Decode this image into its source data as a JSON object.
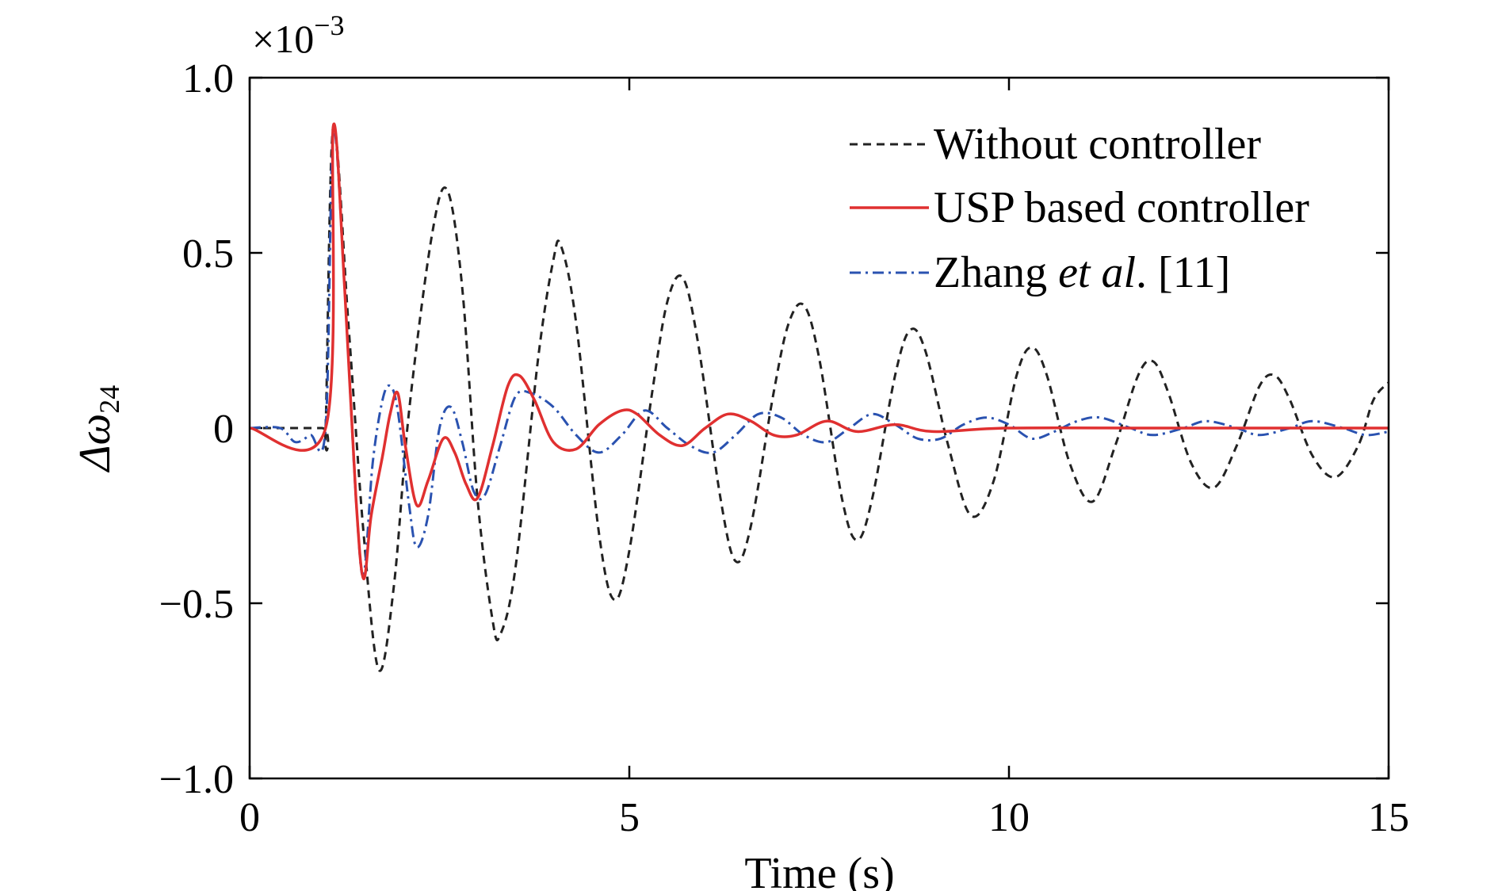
{
  "chart_data": {
    "type": "line",
    "title": "",
    "xlabel": "Time (s)",
    "ylabel_base": "Δω",
    "ylabel_sub": "24",
    "y_scale_label": "×10",
    "y_scale_exponent": "−3",
    "xlim": [
      0,
      15
    ],
    "ylim": [
      -1.0,
      1.0
    ],
    "xticks": [
      0,
      5,
      10,
      15
    ],
    "xtick_labels": [
      "0",
      "5",
      "10",
      "15"
    ],
    "yticks": [
      -1.0,
      -0.5,
      0,
      0.5,
      1.0
    ],
    "ytick_labels": [
      "−1.0",
      "−0.5",
      "0",
      "0.5",
      "1.0"
    ],
    "grid": false,
    "legend_position": "top-right",
    "legend": [
      {
        "label": "Without controller",
        "color": "#222222",
        "style": "dashed"
      },
      {
        "label": "USP based controller",
        "color": "#e03030",
        "style": "solid"
      },
      {
        "label_parts": [
          "Zhang ",
          "et al",
          ". [11]"
        ],
        "color": "#2a52b0",
        "style": "dashdot"
      }
    ],
    "series": [
      {
        "name": "Without controller",
        "color": "#222222",
        "style": "dashed",
        "points": [
          [
            0,
            0
          ],
          [
            0.95,
            0
          ],
          [
            1.0,
            0
          ],
          [
            1.1,
            0.86
          ],
          [
            1.3,
            0.3
          ],
          [
            1.5,
            -0.3
          ],
          [
            1.7,
            -0.69
          ],
          [
            1.9,
            -0.45
          ],
          [
            2.1,
            0.05
          ],
          [
            2.4,
            0.55
          ],
          [
            2.6,
            0.68
          ],
          [
            2.8,
            0.4
          ],
          [
            3.0,
            -0.2
          ],
          [
            3.2,
            -0.55
          ],
          [
            3.3,
            -0.59
          ],
          [
            3.5,
            -0.4
          ],
          [
            3.8,
            0.2
          ],
          [
            4.0,
            0.48
          ],
          [
            4.1,
            0.52
          ],
          [
            4.3,
            0.3
          ],
          [
            4.6,
            -0.3
          ],
          [
            4.8,
            -0.49
          ],
          [
            5.0,
            -0.35
          ],
          [
            5.3,
            0.1
          ],
          [
            5.5,
            0.36
          ],
          [
            5.7,
            0.43
          ],
          [
            5.9,
            0.25
          ],
          [
            6.2,
            -0.2
          ],
          [
            6.4,
            -0.38
          ],
          [
            6.6,
            -0.28
          ],
          [
            6.9,
            0.1
          ],
          [
            7.1,
            0.3
          ],
          [
            7.3,
            0.35
          ],
          [
            7.5,
            0.2
          ],
          [
            7.8,
            -0.2
          ],
          [
            8.0,
            -0.32
          ],
          [
            8.2,
            -0.2
          ],
          [
            8.5,
            0.15
          ],
          [
            8.7,
            0.28
          ],
          [
            8.9,
            0.22
          ],
          [
            9.2,
            -0.05
          ],
          [
            9.5,
            -0.25
          ],
          [
            9.8,
            -0.15
          ],
          [
            10.1,
            0.15
          ],
          [
            10.3,
            0.23
          ],
          [
            10.5,
            0.15
          ],
          [
            10.8,
            -0.1
          ],
          [
            11.1,
            -0.21
          ],
          [
            11.4,
            -0.05
          ],
          [
            11.7,
            0.15
          ],
          [
            11.9,
            0.19
          ],
          [
            12.1,
            0.1
          ],
          [
            12.4,
            -0.1
          ],
          [
            12.7,
            -0.17
          ],
          [
            13.0,
            -0.05
          ],
          [
            13.3,
            0.12
          ],
          [
            13.5,
            0.15
          ],
          [
            13.7,
            0.08
          ],
          [
            14.0,
            -0.08
          ],
          [
            14.3,
            -0.14
          ],
          [
            14.6,
            -0.05
          ],
          [
            14.8,
            0.08
          ],
          [
            15.0,
            0.13
          ]
        ]
      },
      {
        "name": "USP based controller",
        "color": "#e03030",
        "style": "solid",
        "points": [
          [
            0,
            0
          ],
          [
            1.0,
            0
          ],
          [
            1.1,
            0.86
          ],
          [
            1.25,
            0.4
          ],
          [
            1.4,
            -0.2
          ],
          [
            1.5,
            -0.43
          ],
          [
            1.6,
            -0.25
          ],
          [
            1.75,
            -0.08
          ],
          [
            1.85,
            0.04
          ],
          [
            1.95,
            0.1
          ],
          [
            2.05,
            -0.05
          ],
          [
            2.2,
            -0.22
          ],
          [
            2.35,
            -0.15
          ],
          [
            2.55,
            -0.03
          ],
          [
            2.7,
            -0.07
          ],
          [
            2.85,
            -0.16
          ],
          [
            3.0,
            -0.2
          ],
          [
            3.2,
            -0.05
          ],
          [
            3.4,
            0.12
          ],
          [
            3.55,
            0.15
          ],
          [
            3.75,
            0.08
          ],
          [
            4.0,
            -0.04
          ],
          [
            4.3,
            -0.06
          ],
          [
            4.6,
            0.01
          ],
          [
            4.9,
            0.05
          ],
          [
            5.1,
            0.04
          ],
          [
            5.4,
            -0.02
          ],
          [
            5.7,
            -0.05
          ],
          [
            6.0,
            0.0
          ],
          [
            6.3,
            0.04
          ],
          [
            6.6,
            0.02
          ],
          [
            6.9,
            -0.02
          ],
          [
            7.2,
            -0.02
          ],
          [
            7.6,
            0.02
          ],
          [
            8.0,
            -0.01
          ],
          [
            8.5,
            0.01
          ],
          [
            9.0,
            -0.01
          ],
          [
            10.0,
            0.0
          ],
          [
            12.0,
            0.0
          ],
          [
            15.0,
            0.0
          ]
        ]
      },
      {
        "name": "Zhang et al. [11]",
        "color": "#2a52b0",
        "style": "dashdot",
        "points": [
          [
            0,
            0
          ],
          [
            0.4,
            0
          ],
          [
            0.6,
            -0.04
          ],
          [
            0.8,
            -0.02
          ],
          [
            1.0,
            0
          ],
          [
            1.1,
            0.84
          ],
          [
            1.25,
            0.4
          ],
          [
            1.4,
            -0.2
          ],
          [
            1.5,
            -0.42
          ],
          [
            1.62,
            -0.1
          ],
          [
            1.75,
            0.08
          ],
          [
            1.85,
            0.12
          ],
          [
            1.95,
            0.05
          ],
          [
            2.1,
            -0.22
          ],
          [
            2.2,
            -0.34
          ],
          [
            2.35,
            -0.25
          ],
          [
            2.5,
            0.0
          ],
          [
            2.65,
            0.06
          ],
          [
            2.8,
            -0.04
          ],
          [
            2.95,
            -0.18
          ],
          [
            3.1,
            -0.19
          ],
          [
            3.3,
            -0.05
          ],
          [
            3.5,
            0.09
          ],
          [
            3.7,
            0.1
          ],
          [
            4.0,
            0.06
          ],
          [
            4.3,
            -0.02
          ],
          [
            4.6,
            -0.07
          ],
          [
            4.9,
            -0.02
          ],
          [
            5.2,
            0.05
          ],
          [
            5.5,
            0.0
          ],
          [
            5.8,
            -0.05
          ],
          [
            6.1,
            -0.07
          ],
          [
            6.4,
            -0.02
          ],
          [
            6.7,
            0.04
          ],
          [
            7.0,
            0.03
          ],
          [
            7.3,
            -0.02
          ],
          [
            7.6,
            -0.04
          ],
          [
            7.9,
            0.0
          ],
          [
            8.2,
            0.04
          ],
          [
            8.5,
            0.01
          ],
          [
            8.8,
            -0.03
          ],
          [
            9.1,
            -0.03
          ],
          [
            9.4,
            0.01
          ],
          [
            9.7,
            0.03
          ],
          [
            10.0,
            0.01
          ],
          [
            10.3,
            -0.03
          ],
          [
            10.6,
            -0.01
          ],
          [
            10.9,
            0.02
          ],
          [
            11.2,
            0.03
          ],
          [
            11.6,
            0.0
          ],
          [
            11.9,
            -0.02
          ],
          [
            12.3,
            0.0
          ],
          [
            12.6,
            0.02
          ],
          [
            13.0,
            0.0
          ],
          [
            13.3,
            -0.02
          ],
          [
            13.7,
            0.0
          ],
          [
            14.0,
            0.02
          ],
          [
            14.4,
            0.0
          ],
          [
            14.7,
            -0.02
          ],
          [
            15.0,
            -0.01
          ]
        ]
      }
    ]
  }
}
